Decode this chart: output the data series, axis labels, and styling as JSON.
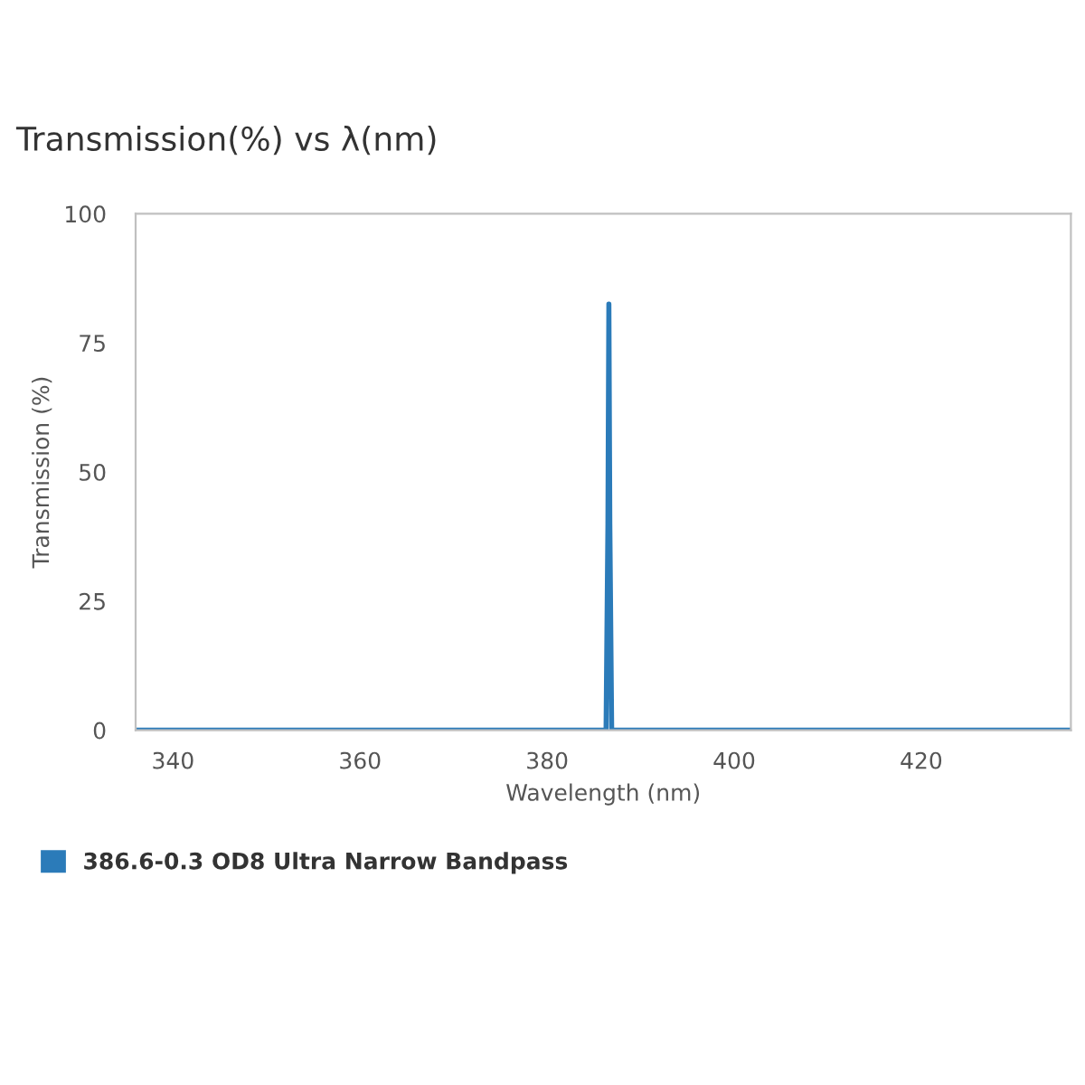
{
  "chart_data": {
    "type": "line",
    "title": "Transmission(%) vs λ(nm)",
    "xlabel": "Wavelength (nm)",
    "ylabel": "Transmission (%)",
    "series": [
      {
        "name": "386.6-0.3 OD8 Ultra Narrow Bandpass",
        "color": "#2b7bb9",
        "x": [
          336,
          386.3,
          386.5,
          386.6,
          386.7,
          386.9,
          436
        ],
        "values": [
          0,
          0,
          40,
          82.5,
          40,
          0,
          0
        ]
      }
    ],
    "xlim": [
      336,
      436
    ],
    "xticks": [
      340,
      360,
      380,
      400,
      420
    ],
    "ylim": [
      0,
      100
    ],
    "yticks": [
      0,
      25,
      50,
      75,
      100
    ],
    "grid": false,
    "legend": "bottom left",
    "marker": "none",
    "line_style": "solid"
  }
}
